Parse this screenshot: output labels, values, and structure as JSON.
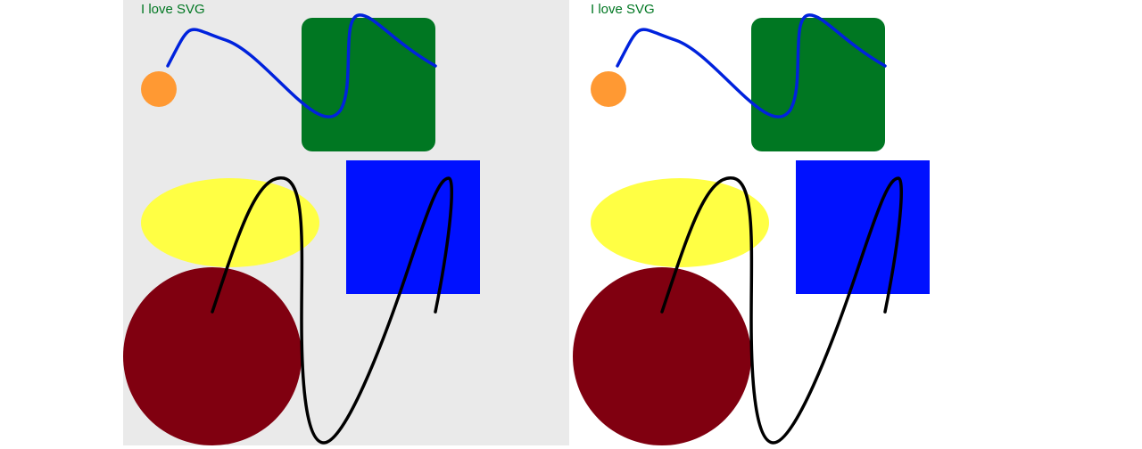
{
  "caption": "I love SVG",
  "colors": {
    "left_background": "#eaeaea",
    "right_background": "#ffffff",
    "text": "#007722",
    "orange_circle": "#ff9933",
    "green_rect": "#007722",
    "blue_curve": "#0022dd",
    "yellow_ellipse": "#ffff44",
    "blue_rect": "#0011ff",
    "dark_red_circle": "#800010",
    "black_curve": "#000000"
  }
}
